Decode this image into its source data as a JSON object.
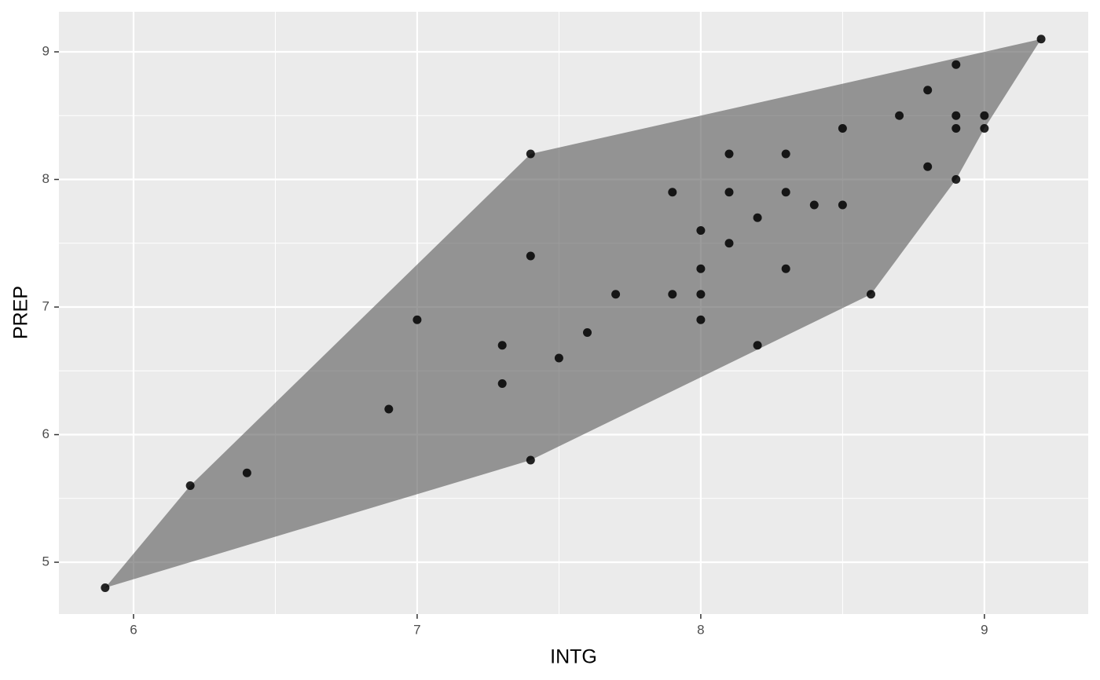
{
  "chart_data": {
    "type": "scatter",
    "xlabel": "INTG",
    "ylabel": "PREP",
    "x": [
      5.9,
      6.2,
      6.4,
      6.9,
      7.0,
      7.3,
      7.3,
      7.4,
      7.4,
      7.4,
      7.5,
      7.6,
      7.7,
      7.9,
      7.9,
      8.0,
      8.0,
      8.0,
      8.0,
      8.1,
      8.1,
      8.1,
      8.2,
      8.2,
      8.3,
      8.3,
      8.3,
      8.4,
      8.5,
      8.5,
      8.6,
      8.7,
      8.8,
      8.8,
      8.9,
      8.9,
      8.9,
      8.9,
      9.0,
      9.0,
      9.2
    ],
    "values": [
      4.8,
      5.6,
      5.7,
      6.2,
      6.9,
      6.7,
      6.4,
      8.2,
      7.4,
      5.8,
      6.6,
      6.8,
      7.1,
      7.9,
      7.1,
      7.6,
      7.3,
      7.1,
      6.9,
      8.2,
      7.9,
      7.5,
      7.7,
      6.7,
      8.2,
      7.9,
      7.3,
      7.8,
      8.4,
      7.8,
      7.1,
      8.5,
      8.7,
      8.1,
      8.9,
      8.5,
      8.4,
      8.0,
      8.5,
      8.4,
      9.1
    ],
    "color": "#000000",
    "hull": {
      "x": [
        5.9,
        6.2,
        7.4,
        9.2,
        9.0,
        8.9,
        8.6,
        7.4
      ],
      "y": [
        4.8,
        5.6,
        8.2,
        9.1,
        8.4,
        8.0,
        7.1,
        5.8
      ],
      "color": "#595959"
    },
    "xlim": [
      5.737,
      9.366
    ],
    "ylim": [
      4.594,
      9.314
    ],
    "xticks": [
      6,
      7,
      8,
      9
    ],
    "yticks": [
      5,
      6,
      7,
      8,
      9
    ],
    "minor_xticks": [
      6.5,
      7.5,
      8.5
    ],
    "minor_yticks": [
      5.5,
      6.5,
      7.5,
      8.5
    ],
    "grid": true
  }
}
